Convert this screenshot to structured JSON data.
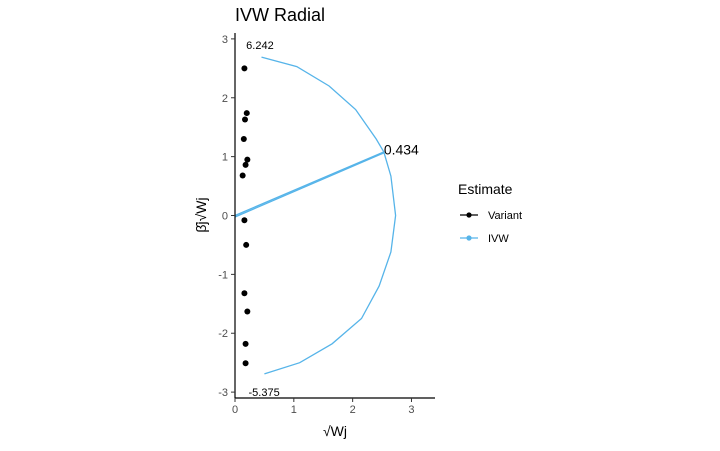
{
  "chart_data": {
    "type": "scatter",
    "title": "IVW Radial",
    "xlabel": "√Wj",
    "ylabel": "β̂j√Wj",
    "xlim": [
      0,
      3.4
    ],
    "ylim": [
      -3.1,
      3.1
    ],
    "x_ticks": [
      0,
      1,
      2,
      3
    ],
    "y_ticks": [
      -3,
      -2,
      -1,
      0,
      1,
      2,
      3
    ],
    "grid": false,
    "legend_position": "right",
    "legend": {
      "title": "Estimate",
      "entries": [
        {
          "label": "Variant",
          "color": "#000000"
        },
        {
          "label": "IVW",
          "color": "#56B4E9"
        }
      ]
    },
    "series": [
      {
        "name": "Variant",
        "color": "#000000",
        "points": [
          {
            "x": 0.16,
            "y": 2.5
          },
          {
            "x": 0.2,
            "y": 1.74
          },
          {
            "x": 0.17,
            "y": 1.63
          },
          {
            "x": 0.15,
            "y": 1.3
          },
          {
            "x": 0.21,
            "y": 0.95
          },
          {
            "x": 0.18,
            "y": 0.86
          },
          {
            "x": 0.13,
            "y": 0.68
          },
          {
            "x": 0.16,
            "y": -0.08
          },
          {
            "x": 0.19,
            "y": -0.5
          },
          {
            "x": 0.16,
            "y": -1.32
          },
          {
            "x": 0.21,
            "y": -1.63
          },
          {
            "x": 0.18,
            "y": -2.18
          },
          {
            "x": 0.18,
            "y": -2.51
          }
        ]
      },
      {
        "name": "IVW",
        "color": "#56B4E9",
        "estimate_line": {
          "x0": 0,
          "y0": 0,
          "x1": 2.53,
          "y1": 1.08
        },
        "arc": [
          {
            "x": 0.45,
            "y": 2.69
          },
          {
            "x": 1.05,
            "y": 2.53
          },
          {
            "x": 1.6,
            "y": 2.2
          },
          {
            "x": 2.05,
            "y": 1.8
          },
          {
            "x": 2.4,
            "y": 1.3
          },
          {
            "x": 2.53,
            "y": 1.08
          },
          {
            "x": 2.65,
            "y": 0.67
          },
          {
            "x": 2.73,
            "y": 0.0
          },
          {
            "x": 2.65,
            "y": -0.62
          },
          {
            "x": 2.45,
            "y": -1.2
          },
          {
            "x": 2.15,
            "y": -1.75
          },
          {
            "x": 1.65,
            "y": -2.18
          },
          {
            "x": 1.1,
            "y": -2.5
          },
          {
            "x": 0.5,
            "y": -2.69
          }
        ]
      }
    ],
    "annotations": [
      {
        "text": "6.242",
        "x": 0.19,
        "y": 2.9,
        "size": "small"
      },
      {
        "text": "0.434",
        "x": 2.53,
        "y": 1.12,
        "size": "large"
      },
      {
        "text": "-5.375",
        "x": 0.23,
        "y": -3.0,
        "size": "small"
      }
    ]
  }
}
